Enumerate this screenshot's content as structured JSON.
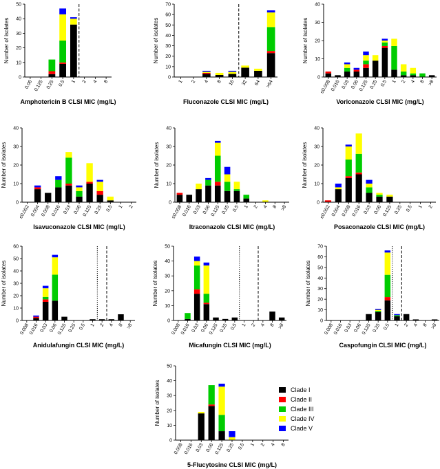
{
  "figure": {
    "colors": {
      "Clade I": "#000000",
      "Clade II": "#ff0000",
      "Clade III": "#00cc00",
      "Clade IV": "#ffff00",
      "Clade V": "#0000ff"
    },
    "legend": [
      "Clade I",
      "Clade II",
      "Clade III",
      "Clade IV",
      "Clade V"
    ]
  },
  "chart_data": [
    {
      "id": "amb",
      "type": "bar",
      "stacked": true,
      "title": "",
      "xlabel": "Amphotericin B CLSI MIC (mg/L)",
      "ylabel": "Number of isolates",
      "ylim": [
        0,
        50
      ],
      "yticks": [
        0,
        10,
        20,
        30,
        40,
        50
      ],
      "categories": [
        "0.06",
        "0.125",
        "0.25",
        "0.5",
        "1",
        "2",
        "4",
        "8"
      ],
      "series": [
        {
          "name": "Clade I",
          "values": [
            0,
            0,
            2,
            9,
            36,
            0,
            0,
            0
          ]
        },
        {
          "name": "Clade II",
          "values": [
            0,
            0,
            2,
            1,
            0,
            0,
            0,
            0
          ]
        },
        {
          "name": "Clade III",
          "values": [
            0,
            0,
            8,
            15,
            0,
            0,
            0,
            0
          ]
        },
        {
          "name": "Clade IV",
          "values": [
            0,
            0,
            0,
            18,
            4,
            0,
            0,
            0
          ]
        },
        {
          "name": "Clade V",
          "values": [
            0,
            0,
            0,
            4,
            1,
            0,
            0,
            0
          ]
        }
      ],
      "breakpoints": [
        {
          "after": "1",
          "style": "dashed"
        }
      ]
    },
    {
      "id": "flu",
      "type": "bar",
      "stacked": true,
      "title": "",
      "xlabel": "Fluconazole CLSI MIC (mg/L)",
      "ylabel": "Number of isolates",
      "ylim": [
        0,
        70
      ],
      "yticks": [
        0,
        10,
        20,
        30,
        40,
        50,
        60,
        70
      ],
      "categories": [
        "1",
        "2",
        "4",
        "8",
        "16",
        "32",
        "64",
        ">64"
      ],
      "series": [
        {
          "name": "Clade I",
          "values": [
            0,
            0,
            3,
            2,
            3,
            9,
            6,
            23
          ]
        },
        {
          "name": "Clade II",
          "values": [
            0,
            0,
            1,
            0,
            0,
            0,
            0,
            2
          ]
        },
        {
          "name": "Clade III",
          "values": [
            0,
            0,
            0,
            0,
            0,
            0,
            0,
            23
          ]
        },
        {
          "name": "Clade IV",
          "values": [
            0,
            0,
            1,
            2,
            2,
            2,
            2,
            14
          ]
        },
        {
          "name": "Clade V",
          "values": [
            0,
            0,
            1,
            0,
            1,
            0,
            0,
            2
          ]
        }
      ],
      "breakpoints": [
        {
          "after": "16",
          "style": "dashed"
        }
      ]
    },
    {
      "id": "vor",
      "type": "bar",
      "stacked": true,
      "title": "",
      "xlabel": "Voriconazole CLSI MIC (mg/L)",
      "ylabel": "Number of isolates",
      "ylim": [
        0,
        40
      ],
      "yticks": [
        0,
        10,
        20,
        30,
        40
      ],
      "categories": [
        "≤0.008",
        "0.016",
        "0.03",
        "0.06",
        "0.125",
        "0.25",
        "0.5",
        "1",
        "2",
        "4",
        "8",
        ">8"
      ],
      "series": [
        {
          "name": "Clade I",
          "values": [
            2,
            1,
            3,
            3,
            5,
            9,
            16,
            4,
            1,
            1,
            0,
            1
          ]
        },
        {
          "name": "Clade II",
          "values": [
            1,
            0,
            0,
            1,
            2,
            0,
            1,
            0,
            0,
            0,
            0,
            0
          ]
        },
        {
          "name": "Clade III",
          "values": [
            0,
            0,
            2,
            0,
            2,
            0,
            2,
            13,
            2,
            1,
            2,
            0
          ]
        },
        {
          "name": "Clade IV",
          "values": [
            0,
            0,
            2,
            0,
            3,
            3,
            1,
            4,
            4,
            3,
            0,
            0
          ]
        },
        {
          "name": "Clade V",
          "values": [
            0,
            0,
            1,
            1,
            2,
            0,
            1,
            0,
            0,
            0,
            0,
            0
          ]
        }
      ]
    },
    {
      "id": "isa",
      "type": "bar",
      "stacked": true,
      "title": "",
      "xlabel": "Isavuconazole CLSI MIC (mg/L)",
      "ylabel": "Number of isolates",
      "ylim": [
        0,
        40
      ],
      "yticks": [
        0,
        10,
        20,
        30,
        40
      ],
      "categories": [
        "≤0.002",
        "0.004",
        "0.008",
        "0.016",
        "0.03",
        "0.06",
        "0.125",
        "0.25",
        "0.5",
        "1",
        "2"
      ],
      "series": [
        {
          "name": "Clade I",
          "values": [
            0,
            7,
            5,
            8,
            9,
            3,
            10,
            4,
            1,
            0,
            0
          ]
        },
        {
          "name": "Clade II",
          "values": [
            0,
            1,
            0,
            0,
            1,
            0,
            1,
            2,
            0,
            0,
            0
          ]
        },
        {
          "name": "Clade III",
          "values": [
            0,
            0,
            0,
            4,
            14,
            3,
            0,
            0,
            0,
            0,
            0
          ]
        },
        {
          "name": "Clade IV",
          "values": [
            0,
            0,
            0,
            0,
            3,
            2,
            10,
            5,
            2,
            0,
            0
          ]
        },
        {
          "name": "Clade V",
          "values": [
            0,
            1,
            0,
            2,
            0,
            1,
            0,
            1,
            0,
            0,
            0
          ]
        }
      ]
    },
    {
      "id": "itr",
      "type": "bar",
      "stacked": true,
      "title": "",
      "xlabel": "Itraconazole CLSI MIC (mg/L)",
      "ylabel": "Number of isolates",
      "ylim": [
        0,
        40
      ],
      "yticks": [
        0,
        10,
        20,
        30,
        40
      ],
      "categories": [
        "≤0.008",
        "0.016",
        "0.03",
        "0.06",
        "0.125",
        "0.25",
        "0.5",
        "1",
        "2",
        "4",
        "8",
        ">8"
      ],
      "series": [
        {
          "name": "Clade I",
          "values": [
            4,
            4,
            7,
            9,
            9,
            6,
            6,
            2,
            0,
            0,
            0,
            0
          ]
        },
        {
          "name": "Clade II",
          "values": [
            1,
            0,
            0,
            0,
            2,
            0,
            0,
            0,
            0,
            0,
            0,
            0
          ]
        },
        {
          "name": "Clade III",
          "values": [
            0,
            0,
            0,
            3,
            14,
            5,
            1,
            2,
            0,
            0,
            0,
            0
          ]
        },
        {
          "name": "Clade IV",
          "values": [
            0,
            0,
            3,
            0,
            7,
            4,
            4,
            0,
            0,
            1,
            0,
            0
          ]
        },
        {
          "name": "Clade V",
          "values": [
            0,
            0,
            0,
            1,
            1,
            4,
            0,
            0,
            0,
            0,
            0,
            0
          ]
        }
      ]
    },
    {
      "id": "pos",
      "type": "bar",
      "stacked": true,
      "title": "",
      "xlabel": "Posaconazole CLSI MIC (mg/L)",
      "ylabel": "Number of isolates",
      "ylim": [
        0,
        40
      ],
      "yticks": [
        0,
        10,
        20,
        30,
        40
      ],
      "categories": [
        "≤0.002",
        "0.004",
        "0.008",
        "0.016",
        "0.03",
        "0.06",
        "0.125",
        "0.25",
        "0.5",
        "1",
        "2"
      ],
      "series": [
        {
          "name": "Clade I",
          "values": [
            0,
            7,
            13,
            15,
            5,
            3,
            3,
            0,
            0,
            0,
            0
          ]
        },
        {
          "name": "Clade II",
          "values": [
            1,
            0,
            1,
            1,
            0,
            0,
            0,
            0,
            0,
            0,
            0
          ]
        },
        {
          "name": "Clade III",
          "values": [
            0,
            0,
            9,
            10,
            3,
            1,
            0,
            0,
            0,
            0,
            0
          ]
        },
        {
          "name": "Clade IV",
          "values": [
            0,
            1,
            7,
            11,
            2,
            1,
            1,
            0,
            0,
            0,
            0
          ]
        },
        {
          "name": "Clade V",
          "values": [
            0,
            2,
            1,
            0,
            2,
            0,
            0,
            0,
            0,
            0,
            0
          ]
        }
      ]
    },
    {
      "id": "ani",
      "type": "bar",
      "stacked": true,
      "title": "",
      "xlabel": "Anidulafungin CLSI MIC (mg/L)",
      "ylabel": "Number of isolates",
      "ylim": [
        0,
        60
      ],
      "yticks": [
        0,
        10,
        20,
        30,
        40,
        50,
        60
      ],
      "categories": [
        "0.008",
        "0.016",
        "0.03",
        "0.06",
        "0.125",
        "0.25",
        "0.5",
        "1",
        "2",
        "4",
        "8",
        ">8"
      ],
      "series": [
        {
          "name": "Clade I",
          "values": [
            0,
            2,
            15,
            16,
            3,
            0,
            0,
            1,
            1,
            1,
            5,
            0
          ]
        },
        {
          "name": "Clade II",
          "values": [
            0,
            1,
            2,
            0,
            0,
            0,
            0,
            0,
            0,
            0,
            0,
            0
          ]
        },
        {
          "name": "Clade III",
          "values": [
            0,
            0,
            2,
            21,
            0,
            0,
            0,
            0,
            0,
            0,
            0,
            0
          ]
        },
        {
          "name": "Clade IV",
          "values": [
            0,
            0,
            7,
            14,
            0,
            0,
            0,
            0,
            0,
            0,
            0,
            0
          ]
        },
        {
          "name": "Clade V",
          "values": [
            0,
            1,
            2,
            2,
            0,
            0,
            0,
            0,
            0,
            0,
            0,
            0
          ]
        }
      ],
      "breakpoints": [
        {
          "after": "1",
          "style": "dotted"
        },
        {
          "after": "2",
          "style": "dashed"
        }
      ]
    },
    {
      "id": "mic",
      "type": "bar",
      "stacked": true,
      "title": "",
      "xlabel": "Micafungin CLSI MIC (mg/L)",
      "ylabel": "Number of isolates",
      "ylim": [
        0,
        50
      ],
      "yticks": [
        0,
        10,
        20,
        30,
        40,
        50
      ],
      "categories": [
        "0.008",
        "0.016",
        "0.03",
        "0.06",
        "0.125",
        "0.25",
        "0.5",
        "1",
        "2",
        "4",
        "8",
        ">8"
      ],
      "series": [
        {
          "name": "Clade I",
          "values": [
            0,
            1,
            18,
            11,
            2,
            1,
            2,
            0,
            0,
            0,
            6,
            2
          ]
        },
        {
          "name": "Clade II",
          "values": [
            0,
            0,
            3,
            1,
            0,
            0,
            0,
            0,
            0,
            0,
            0,
            0
          ]
        },
        {
          "name": "Clade III",
          "values": [
            0,
            4,
            16,
            6,
            0,
            0,
            0,
            0,
            0,
            0,
            0,
            0
          ]
        },
        {
          "name": "Clade IV",
          "values": [
            0,
            0,
            3,
            19,
            0,
            0,
            0,
            0,
            0,
            0,
            0,
            0
          ]
        },
        {
          "name": "Clade V",
          "values": [
            0,
            0,
            3,
            2,
            0,
            0,
            0,
            0,
            0,
            0,
            0,
            0
          ]
        }
      ],
      "breakpoints": [
        {
          "after": "0.5",
          "style": "dotted"
        },
        {
          "after": "2",
          "style": "dashed"
        }
      ]
    },
    {
      "id": "cas",
      "type": "bar",
      "stacked": true,
      "title": "",
      "xlabel": "Caspofungin CLSI MIC (mg/L)",
      "ylabel": "Number of isolates",
      "ylim": [
        0,
        70
      ],
      "yticks": [
        0,
        10,
        20,
        30,
        40,
        50,
        60,
        70
      ],
      "categories": [
        "0.008",
        "0.016",
        "0.03",
        "0.06",
        "0.125",
        "0.25",
        "0.5",
        "1",
        "2",
        "4",
        "8",
        ">8"
      ],
      "series": [
        {
          "name": "Clade I",
          "values": [
            0,
            0,
            0,
            0,
            6,
            8,
            19,
            4,
            6,
            1,
            0,
            1
          ]
        },
        {
          "name": "Clade II",
          "values": [
            0,
            0,
            0,
            0,
            0,
            0,
            3,
            0,
            0,
            0,
            0,
            0
          ]
        },
        {
          "name": "Clade III",
          "values": [
            0,
            0,
            0,
            0,
            0,
            1,
            21,
            1,
            0,
            0,
            0,
            0
          ]
        },
        {
          "name": "Clade IV",
          "values": [
            0,
            0,
            0,
            0,
            0,
            1,
            21,
            0,
            0,
            0,
            0,
            0
          ]
        },
        {
          "name": "Clade V",
          "values": [
            0,
            0,
            0,
            0,
            0,
            1,
            2,
            1,
            0,
            0,
            0,
            0
          ]
        }
      ],
      "breakpoints": [
        {
          "after": "0.5",
          "style": "dotted"
        },
        {
          "after": "1",
          "style": "dashed"
        }
      ]
    },
    {
      "id": "fc",
      "type": "bar",
      "stacked": true,
      "title": "",
      "xlabel": "5-Flucytosine CLSI MIC (mg/L)",
      "ylabel": "Number of isolates",
      "ylim": [
        0,
        50
      ],
      "yticks": [
        0,
        10,
        20,
        30,
        40,
        50
      ],
      "categories": [
        "0.008",
        "0.016",
        "0.03",
        "0.06",
        "0.125",
        "0.25",
        "0.5",
        "1",
        "2",
        "4",
        "8"
      ],
      "series": [
        {
          "name": "Clade I",
          "values": [
            0,
            0,
            18,
            23,
            6,
            0,
            0,
            0,
            0,
            0,
            0
          ]
        },
        {
          "name": "Clade II",
          "values": [
            0,
            0,
            0,
            1,
            0,
            0,
            0,
            0,
            0,
            0,
            0
          ]
        },
        {
          "name": "Clade III",
          "values": [
            0,
            0,
            0,
            13,
            11,
            0,
            0,
            0,
            0,
            0,
            0
          ]
        },
        {
          "name": "Clade IV",
          "values": [
            0,
            0,
            1,
            0,
            19,
            2,
            0,
            0,
            0,
            0,
            0
          ]
        },
        {
          "name": "Clade V",
          "values": [
            0,
            0,
            0,
            0,
            2,
            4,
            0,
            0,
            0,
            0,
            0
          ]
        }
      ]
    }
  ]
}
